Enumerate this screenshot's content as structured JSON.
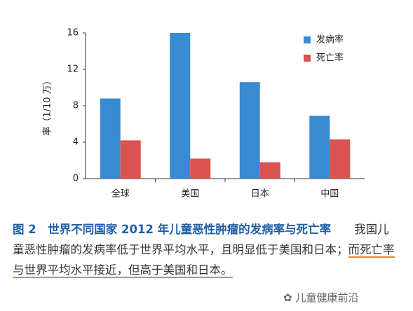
{
  "chart_data": {
    "type": "bar",
    "ylabel": "率（1/10 万）",
    "categories": [
      "全球",
      "美国",
      "日本",
      "中国"
    ],
    "series": [
      {
        "name": "发病率",
        "color": "#3a8ad2",
        "values": [
          8.8,
          16.0,
          10.6,
          6.9
        ]
      },
      {
        "name": "死亡率",
        "color": "#d9534f",
        "values": [
          4.2,
          2.2,
          1.8,
          4.3
        ]
      }
    ],
    "ylim": [
      0,
      16
    ],
    "yticks": [
      0,
      4,
      8,
      12,
      16
    ],
    "legend": "upper right"
  },
  "caption": {
    "label": "图 2",
    "title": "世界不同国家 2012 年儿童恶性肿瘤的发病率与死亡率",
    "body": [
      "我国儿童恶性肿瘤的发病率低于世界平均水平，且明显低于美国和日本；",
      "而死亡率与世界平均水平接近，但高于美国和日本。"
    ]
  },
  "watermark": "儿童健康前沿"
}
